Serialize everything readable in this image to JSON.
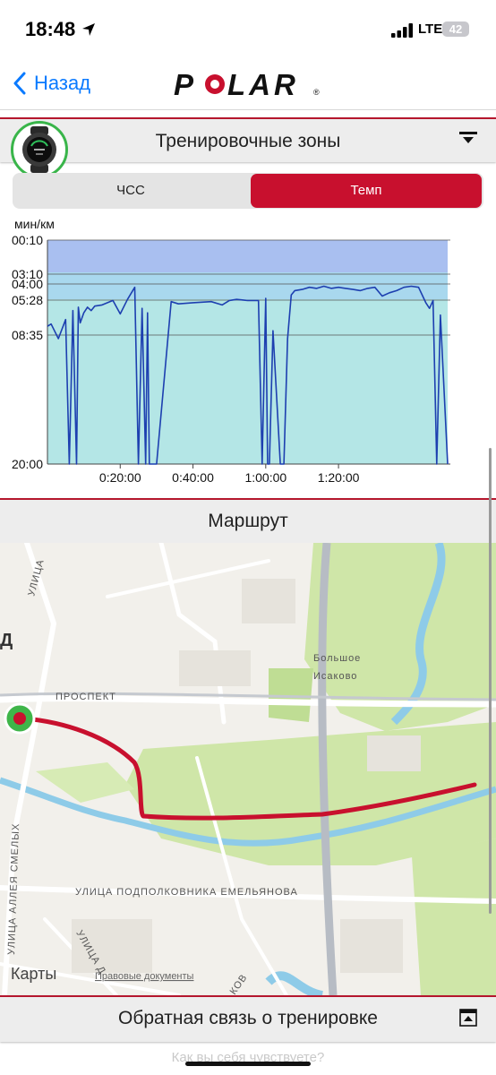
{
  "status_bar": {
    "time": "18:48",
    "network": "LTE",
    "battery": "42"
  },
  "nav": {
    "back_label": "Назад",
    "logo_text": "POLAR"
  },
  "training_zones": {
    "title": "Тренировочные зоны",
    "tabs": [
      {
        "label": "ЧСС",
        "selected": false
      },
      {
        "label": "Темп",
        "selected": true
      }
    ]
  },
  "chart_data": {
    "type": "line",
    "ylabel": "мин/км",
    "y_ticks": [
      "00:10",
      "03:10",
      "04:00",
      "05:28",
      "08:35",
      "20:00"
    ],
    "x_ticks": [
      "0:20:00",
      "0:40:00",
      "1:00:00",
      "1:20:00"
    ],
    "zone_colors": [
      "#a9bff0",
      "#a9d8ee",
      "#b4e6e6"
    ],
    "line_color": "#1d3fb0",
    "x_minutes": [
      0,
      1,
      3,
      5,
      6,
      7,
      8,
      8.5,
      9,
      10,
      11,
      12,
      13,
      15,
      18,
      20,
      22,
      24,
      25,
      26,
      27,
      27.5,
      28,
      29,
      30,
      34,
      36,
      40,
      45,
      48,
      50,
      52,
      55,
      58,
      59,
      60,
      60.5,
      61,
      62,
      64,
      65,
      66,
      67,
      68,
      70,
      72,
      74,
      76,
      78,
      80,
      82,
      84,
      86,
      88,
      90,
      92,
      94,
      96,
      98,
      100,
      102,
      104,
      105,
      106,
      107,
      108,
      110
    ],
    "pace_min_per_km": [
      7.8,
      7.6,
      8.9,
      7.2,
      20.0,
      6.4,
      20.0,
      6.1,
      7.5,
      6.6,
      6.1,
      6.4,
      6.0,
      5.9,
      5.5,
      6.7,
      5.4,
      4.3,
      20.0,
      6.2,
      20.0,
      6.6,
      20.0,
      20.0,
      20.0,
      5.6,
      5.8,
      5.7,
      5.6,
      5.9,
      5.5,
      5.4,
      5.5,
      5.5,
      20.0,
      5.3,
      20.0,
      20.0,
      8.2,
      20.0,
      20.0,
      8.9,
      5.0,
      4.6,
      4.5,
      4.3,
      4.4,
      4.2,
      4.4,
      4.3,
      4.4,
      4.5,
      4.6,
      4.4,
      4.3,
      5.1,
      4.8,
      4.6,
      4.3,
      4.2,
      4.3,
      5.7,
      6.2,
      5.5,
      20.0,
      6.8,
      20.0
    ]
  },
  "route": {
    "title": "Маршрут",
    "labels": {
      "village": [
        "Большое",
        "Исаково"
      ],
      "prospect": "ПРОСПЕКТ",
      "street_1": "УЛИЦА",
      "street_emelyanova": "УЛИЦА ПОДПОЛКОВНИКА ЕМЕЛЬЯНОВА",
      "street_smelykh": "УЛИЦА АЛЛЕЯ СМЕЛЫХ",
      "street_d": "УЛИЦА Д",
      "street_k": "КОВ",
      "partial_d": "Д"
    },
    "attribution": "Карты",
    "legal": "Правовые документы",
    "route_color": "#c8102e"
  },
  "feedback": {
    "title": "Обратная связь о тренировке",
    "hidden_question": "Как вы себя чувствуете?"
  }
}
